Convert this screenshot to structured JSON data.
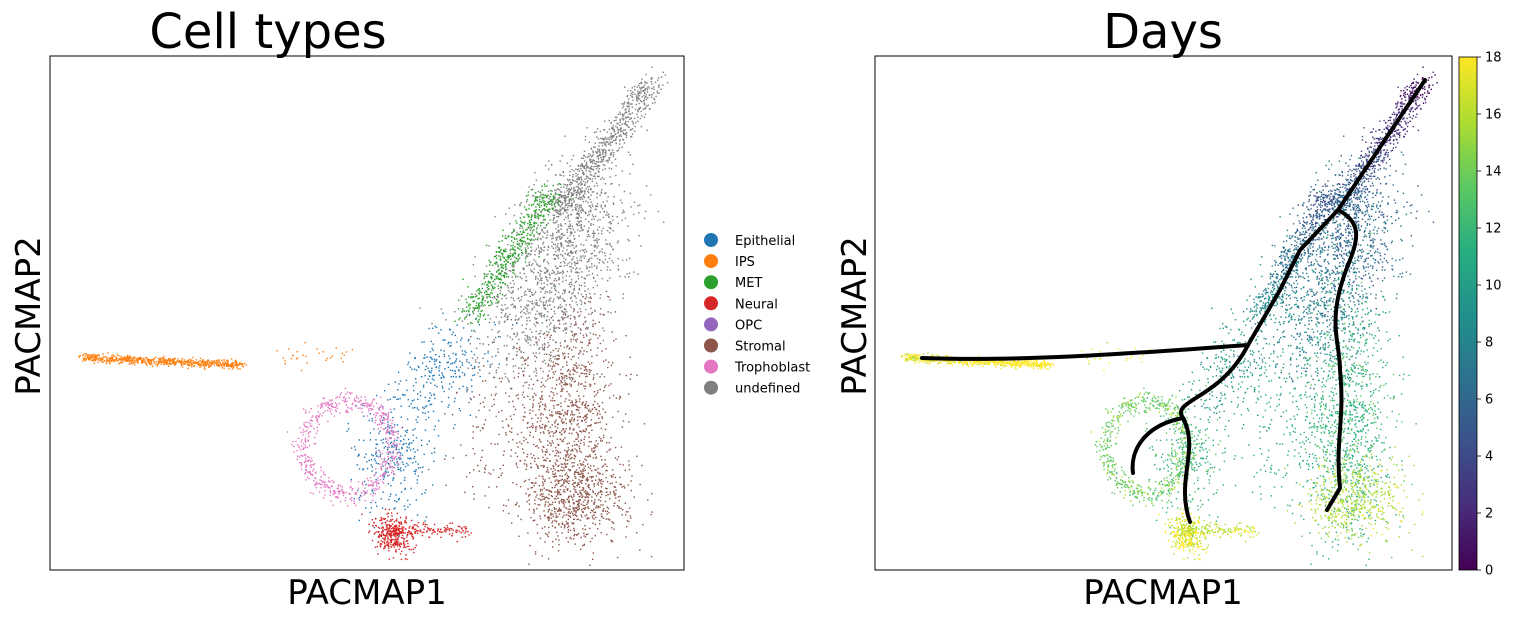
{
  "chart_data": [
    {
      "type": "scatter",
      "title": "Cell types",
      "xlabel": "PACMAP1",
      "ylabel": "PACMAP2",
      "grid": false,
      "ticks": false,
      "legend": {
        "placement": "right",
        "entries": [
          {
            "name": "Epithelial",
            "color": "#1f77b4"
          },
          {
            "name": "IPS",
            "color": "#ff7f0e"
          },
          {
            "name": "MET",
            "color": "#2ca02c"
          },
          {
            "name": "Neural",
            "color": "#d62728"
          },
          {
            "name": "OPC",
            "color": "#9467bd"
          },
          {
            "name": "Stromal",
            "color": "#8c564b"
          },
          {
            "name": "Trophoblast",
            "color": "#e377c2"
          },
          {
            "name": "undefined",
            "color": "#7f7f7f"
          }
        ]
      }
    },
    {
      "type": "scatter",
      "title": "Days",
      "xlabel": "PACMAP1",
      "ylabel": "PACMAP2",
      "grid": false,
      "ticks": false,
      "colorbar": {
        "colormap": "viridis",
        "range": [
          0,
          18
        ],
        "ticks": [
          "0",
          "2",
          "4",
          "6",
          "8",
          "10",
          "12",
          "14",
          "16",
          "18"
        ],
        "placement": "right"
      },
      "trajectory_color": "#000000"
    }
  ]
}
